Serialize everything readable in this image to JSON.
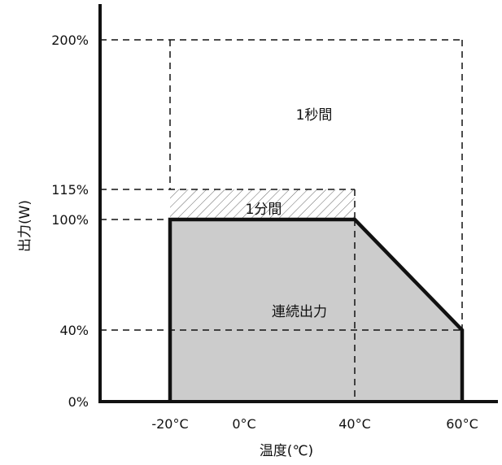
{
  "chart_data": {
    "type": "area",
    "title": "",
    "xlabel": "温度(℃)",
    "ylabel": "出力(W)",
    "x_ticks": [
      {
        "value": -20,
        "label": "-20°C"
      },
      {
        "value": 0,
        "label": "0°C"
      },
      {
        "value": 40,
        "label": "40°C"
      },
      {
        "value": 60,
        "label": "60°C"
      }
    ],
    "y_ticks": [
      {
        "value": 0,
        "label": "0%"
      },
      {
        "value": 40,
        "label": "40%"
      },
      {
        "value": 100,
        "label": "100%"
      },
      {
        "value": 115,
        "label": "115%"
      },
      {
        "value": 200,
        "label": "200%"
      }
    ],
    "regions": [
      {
        "label": "連続出力",
        "points": [
          [
            -20,
            0
          ],
          [
            -20,
            100
          ],
          [
            40,
            100
          ],
          [
            60,
            40
          ],
          [
            60,
            0
          ]
        ],
        "fill": "#cccccc"
      },
      {
        "label": "1分間",
        "points": [
          [
            -20,
            100
          ],
          [
            -20,
            115
          ],
          [
            40,
            115
          ],
          [
            40,
            100
          ]
        ],
        "fill": "hatched"
      },
      {
        "label": "1秒間",
        "points": [
          [
            -20,
            115
          ],
          [
            -20,
            200
          ],
          [
            60,
            200
          ],
          [
            60,
            40
          ]
        ],
        "fill": "none"
      }
    ],
    "continuous_output": {
      "x": [
        -20,
        -20,
        40,
        60,
        60
      ],
      "y": [
        0,
        100,
        100,
        40,
        0
      ]
    },
    "grid": false
  }
}
